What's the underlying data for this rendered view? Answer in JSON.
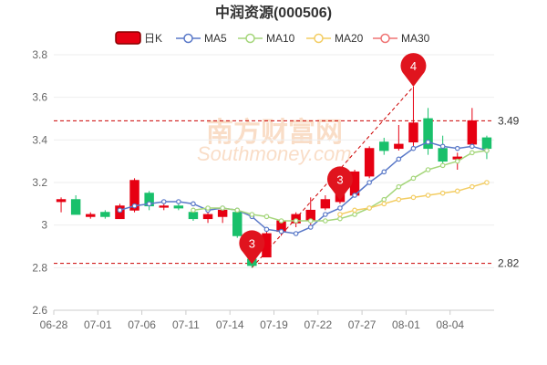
{
  "chart_data": {
    "type": "candlestick",
    "title": "中润资源(000506)",
    "ylim": [
      2.6,
      3.8
    ],
    "y_ticks": [
      "2.6",
      "2.8",
      "3",
      "3.2",
      "3.4",
      "3.6",
      "3.8"
    ],
    "x_tick_labels": [
      "06-28",
      "07-01",
      "07-06",
      "07-11",
      "07-14",
      "07-19",
      "07-22",
      "07-27",
      "08-01",
      "08-04"
    ],
    "legend": [
      "日K",
      "MA5",
      "MA10",
      "MA20",
      "MA30"
    ],
    "colors": {
      "up": "#e60012",
      "down": "#19c06b",
      "ma5": "#5a79c8",
      "ma10": "#a5d67b",
      "ma20": "#f3cd63",
      "ma30": "#ef7373",
      "ref_line": "#cc0000",
      "grid": "#eeeeee",
      "marker": "#e0141e"
    },
    "candles": [
      {
        "open": 3.11,
        "close": 3.12,
        "low": 3.06,
        "high": 3.13
      },
      {
        "open": 3.12,
        "close": 3.05,
        "low": 3.05,
        "high": 3.14
      },
      {
        "open": 3.04,
        "close": 3.05,
        "low": 3.03,
        "high": 3.06
      },
      {
        "open": 3.06,
        "close": 3.04,
        "low": 3.03,
        "high": 3.07
      },
      {
        "open": 3.03,
        "close": 3.09,
        "low": 3.03,
        "high": 3.1
      },
      {
        "open": 3.07,
        "close": 3.21,
        "low": 3.06,
        "high": 3.22
      },
      {
        "open": 3.15,
        "close": 3.09,
        "low": 3.07,
        "high": 3.16
      },
      {
        "open": 3.09,
        "close": 3.09,
        "low": 3.07,
        "high": 3.11
      },
      {
        "open": 3.09,
        "close": 3.08,
        "low": 3.07,
        "high": 3.1
      },
      {
        "open": 3.06,
        "close": 3.03,
        "low": 3.02,
        "high": 3.07
      },
      {
        "open": 3.03,
        "close": 3.05,
        "low": 3.01,
        "high": 3.06
      },
      {
        "open": 3.04,
        "close": 3.07,
        "low": 3.01,
        "high": 3.08
      },
      {
        "open": 3.06,
        "close": 2.95,
        "low": 2.94,
        "high": 3.07
      },
      {
        "open": 2.84,
        "close": 2.81,
        "low": 2.8,
        "high": 2.95
      },
      {
        "open": 2.85,
        "close": 2.96,
        "low": 2.85,
        "high": 2.97
      },
      {
        "open": 2.97,
        "close": 3.02,
        "low": 2.95,
        "high": 3.03
      },
      {
        "open": 3.01,
        "close": 3.05,
        "low": 2.99,
        "high": 3.06
      },
      {
        "open": 3.02,
        "close": 3.07,
        "low": 3.0,
        "high": 3.13
      },
      {
        "open": 3.08,
        "close": 3.12,
        "low": 3.07,
        "high": 3.14
      },
      {
        "open": 3.11,
        "close": 3.19,
        "low": 3.1,
        "high": 3.21
      },
      {
        "open": 3.14,
        "close": 3.25,
        "low": 3.14,
        "high": 3.26
      },
      {
        "open": 3.23,
        "close": 3.36,
        "low": 3.22,
        "high": 3.37
      },
      {
        "open": 3.39,
        "close": 3.35,
        "low": 3.33,
        "high": 3.41
      },
      {
        "open": 3.36,
        "close": 3.38,
        "low": 3.35,
        "high": 3.47
      },
      {
        "open": 3.39,
        "close": 3.48,
        "low": 3.35,
        "high": 3.65
      },
      {
        "open": 3.5,
        "close": 3.36,
        "low": 3.33,
        "high": 3.55
      },
      {
        "open": 3.36,
        "close": 3.3,
        "low": 3.28,
        "high": 3.42
      },
      {
        "open": 3.31,
        "close": 3.32,
        "low": 3.26,
        "high": 3.34
      },
      {
        "open": 3.38,
        "close": 3.49,
        "low": 3.37,
        "high": 3.55
      },
      {
        "open": 3.41,
        "close": 3.36,
        "low": 3.31,
        "high": 3.42
      }
    ],
    "ma5": [
      null,
      null,
      null,
      null,
      3.07,
      3.09,
      3.1,
      3.11,
      3.11,
      3.1,
      3.07,
      3.08,
      3.07,
      3.04,
      2.98,
      2.97,
      2.96,
      2.99,
      3.05,
      3.08,
      3.14,
      3.2,
      3.25,
      3.31,
      3.36,
      3.39,
      3.37,
      3.36,
      3.37,
      3.35
    ],
    "ma10": [
      null,
      null,
      null,
      null,
      null,
      null,
      null,
      null,
      null,
      3.07,
      3.08,
      3.08,
      3.07,
      3.05,
      3.04,
      3.02,
      3.02,
      3.02,
      3.02,
      3.03,
      3.05,
      3.08,
      3.12,
      3.18,
      3.22,
      3.26,
      3.28,
      3.3,
      3.34,
      3.35
    ],
    "ma20": [
      null,
      null,
      null,
      null,
      null,
      null,
      null,
      null,
      null,
      null,
      null,
      null,
      null,
      null,
      null,
      null,
      null,
      null,
      null,
      3.05,
      3.07,
      3.08,
      3.1,
      3.12,
      3.13,
      3.14,
      3.15,
      3.16,
      3.18,
      3.2
    ],
    "ref_lines": [
      {
        "value": 3.49,
        "label": "3.49"
      },
      {
        "value": 2.82,
        "label": "2.82"
      }
    ],
    "markers": [
      {
        "index": 13,
        "label": "3"
      },
      {
        "index": 19,
        "label": "3"
      },
      {
        "index": 24,
        "label": "4"
      }
    ]
  },
  "watermark": {
    "brand": "南方财富网",
    "domain": "Southmoney.com"
  }
}
